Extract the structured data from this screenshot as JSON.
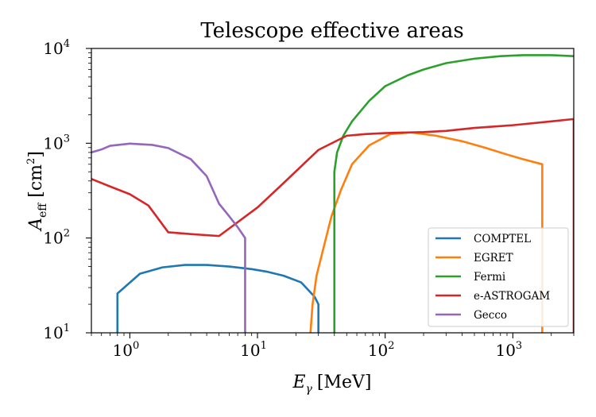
{
  "chart_data": {
    "type": "line",
    "title": "Telescope effective areas",
    "xlabel_base": "E",
    "xlabel_sub": "γ",
    "xlabel_unit": "[MeV]",
    "ylabel_base": "A",
    "ylabel_sub": "eff",
    "ylabel_unit_open": "[cm",
    "ylabel_unit_exp": "2",
    "ylabel_unit_close": "]",
    "x_scale": "log",
    "y_scale": "log",
    "xlim": [
      0.5,
      3000
    ],
    "ylim": [
      10,
      10000
    ],
    "x_ticks": [
      {
        "base": "10",
        "exp": "0",
        "value": 1
      },
      {
        "base": "10",
        "exp": "1",
        "value": 10
      },
      {
        "base": "10",
        "exp": "2",
        "value": 100
      },
      {
        "base": "10",
        "exp": "3",
        "value": 1000
      }
    ],
    "y_ticks": [
      {
        "base": "10",
        "exp": "1",
        "value": 10
      },
      {
        "base": "10",
        "exp": "2",
        "value": 100
      },
      {
        "base": "10",
        "exp": "3",
        "value": 1000
      },
      {
        "base": "10",
        "exp": "4",
        "value": 10000
      }
    ],
    "legend_position": "lower-right",
    "grid": false,
    "series": [
      {
        "name": "COMPTEL",
        "color": "#1f77b4",
        "x": [
          0.8,
          0.8,
          1.2,
          1.8,
          2.7,
          4.0,
          6.0,
          9.0,
          12.0,
          16.0,
          22.0,
          28.0,
          30.0,
          30.0
        ],
        "y": [
          10,
          26,
          42,
          49,
          52,
          52,
          50,
          47,
          44,
          40,
          34,
          24,
          20,
          10
        ]
      },
      {
        "name": "EGRET",
        "color": "#ff7f0e",
        "x": [
          26,
          27,
          29,
          33,
          38,
          45,
          55,
          75,
          110,
          160,
          250,
          400,
          600,
          900,
          1200,
          1700,
          1700
        ],
        "y": [
          10,
          20,
          40,
          80,
          170,
          320,
          600,
          950,
          1250,
          1300,
          1200,
          1050,
          900,
          760,
          680,
          600,
          10
        ]
      },
      {
        "name": "Fermi",
        "color": "#2ca02c",
        "x": [
          40,
          40,
          42,
          47,
          55,
          75,
          100,
          150,
          200,
          300,
          500,
          800,
          1200,
          2000,
          3000
        ],
        "y": [
          10,
          500,
          800,
          1200,
          1700,
          2800,
          4000,
          5200,
          6000,
          7000,
          7800,
          8300,
          8500,
          8500,
          8300
        ]
      },
      {
        "name": "e-ASTROGAM",
        "color": "#d62728",
        "x": [
          0.5,
          0.7,
          1.0,
          1.4,
          2.0,
          3.0,
          5.0,
          10,
          15,
          30,
          50,
          70,
          100,
          150,
          200,
          300,
          500,
          1000,
          2000,
          3000,
          3000
        ],
        "y": [
          420,
          350,
          290,
          220,
          115,
          110,
          105,
          210,
          350,
          850,
          1200,
          1250,
          1280,
          1300,
          1310,
          1350,
          1450,
          1550,
          1700,
          1800,
          10
        ]
      },
      {
        "name": "Gecco",
        "color": "#9467bd",
        "x": [
          0.5,
          0.6,
          0.7,
          1.0,
          1.5,
          2.0,
          3.0,
          4.0,
          5.0,
          6.0,
          7.0,
          8.0,
          8.0
        ],
        "y": [
          800,
          860,
          940,
          990,
          960,
          890,
          680,
          450,
          230,
          170,
          130,
          100,
          10
        ]
      }
    ]
  }
}
